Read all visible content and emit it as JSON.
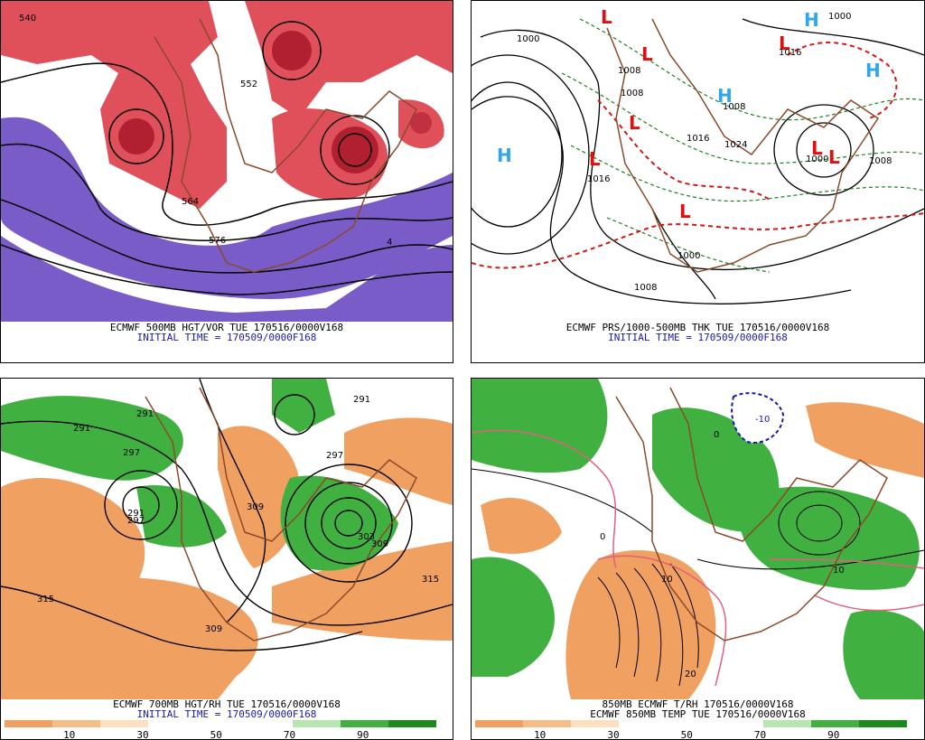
{
  "colors": {
    "positive_vorticity": "#e0505a",
    "negative_vorticity": "#7a5cc8",
    "dry": "#f0a060",
    "moist": "#40b040",
    "coastline": "#8b4a2a",
    "high_symbol": "#30a8e8",
    "low_symbol": "#e01010",
    "thickness_line": "#d01818",
    "thickness_line_cold": "#208020",
    "caption_blue": "#1a1aa8"
  },
  "panels": {
    "top_left": {
      "caption_line1": "ECMWF 500MB HGT/VOR TUE 170516/0000V168",
      "caption_line2": "INITIAL TIME = 170509/0000F168",
      "labels": [
        "540",
        "552",
        "564",
        "576",
        "4"
      ]
    },
    "top_right": {
      "caption_line1": "ECMWF PRS/1000-500MB THK TUE 170516/0000V168",
      "caption_line2": "INITIAL TIME = 170509/0000F168",
      "symbols_h": [
        "H",
        "H",
        "H",
        "H"
      ],
      "symbols_l": [
        "L",
        "L",
        "L",
        "L",
        "L",
        "L",
        "L",
        "L"
      ],
      "pressure_labels": [
        "1000",
        "1000",
        "1008",
        "1008",
        "1016",
        "1016",
        "1024",
        "1000",
        "1008",
        "1008",
        "1000",
        "1008",
        "1016"
      ]
    },
    "bottom_left": {
      "caption_line1": "ECMWF 700MB HGT/RH TUE 170516/0000V168",
      "caption_line2": "INITIAL TIME = 170509/0000F168",
      "height_labels": [
        "291",
        "291",
        "291",
        "297",
        "297",
        "309",
        "309",
        "315",
        "315",
        "297",
        "303",
        "309",
        "291"
      ],
      "scale_ticks": [
        "10",
        "30",
        "50",
        "70",
        "90"
      ]
    },
    "bottom_right": {
      "caption_line1": "850MB ECMWF T/RH 170516/0000V168",
      "caption_line2": "ECMWF 850MB TEMP TUE 170516/0000V168",
      "temp_labels": [
        "-10",
        "0",
        "0",
        "10",
        "10",
        "20"
      ],
      "scale_ticks": [
        "10",
        "30",
        "50",
        "70",
        "90"
      ]
    }
  }
}
